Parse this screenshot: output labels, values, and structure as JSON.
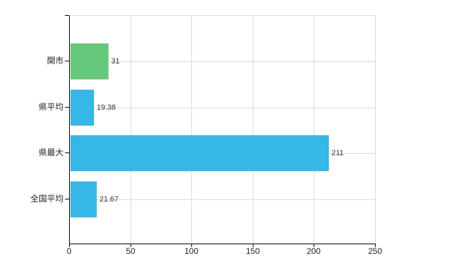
{
  "chart_data": {
    "type": "bar",
    "orientation": "horizontal",
    "title": "",
    "xlabel": "",
    "ylabel": "",
    "categories": [
      "関市",
      "県平均",
      "県最大",
      "全国平均"
    ],
    "values": [
      31,
      19.38,
      211,
      21.67
    ],
    "value_labels": [
      "31",
      "19.38",
      "211",
      "21.67"
    ],
    "bar_colors": [
      "#66c97a",
      "#35b8e8",
      "#35b8e8",
      "#35b8e8"
    ],
    "x_ticks": [
      0,
      50,
      100,
      150,
      200,
      250
    ],
    "x_tick_labels": [
      "0",
      "50",
      "100",
      "150",
      "200",
      "250"
    ],
    "xlim": [
      0,
      250
    ],
    "grid": true,
    "legend": "none"
  },
  "colors": {
    "bar_green": "#66c97a",
    "bar_blue": "#35b8e8",
    "gridline": "#d9d9d9",
    "axis_line": "#000000",
    "text": "#222222",
    "value_text": "#333333",
    "background": "#ffffff"
  }
}
